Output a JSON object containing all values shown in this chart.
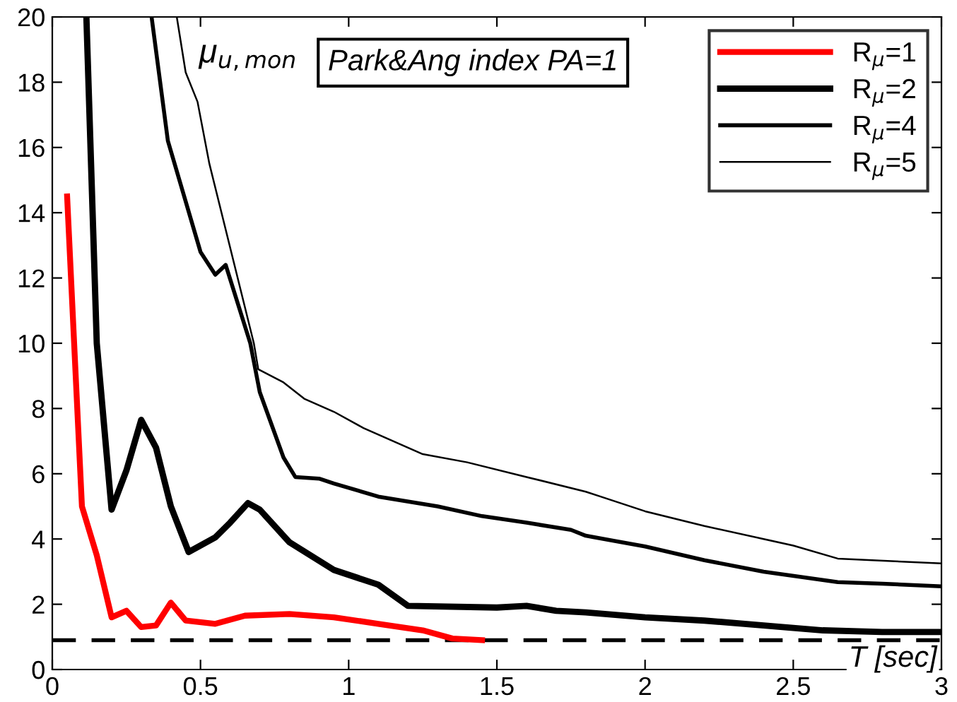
{
  "chart_data": {
    "type": "line",
    "xlabel": "T [sec]",
    "annotations": [
      "μ$_{u,mon}$",
      "Park&Ang index PA=1"
    ],
    "xlim": [
      0,
      3
    ],
    "ylim": [
      0,
      20
    ],
    "xticks": [
      0,
      0.5,
      1,
      1.5,
      2,
      2.5,
      3
    ],
    "yticks": [
      0,
      2,
      4,
      6,
      8,
      10,
      12,
      14,
      16,
      18,
      20
    ],
    "grid": false,
    "legend": "top right",
    "marker": "none",
    "line_style": "solid",
    "ref_lines": [
      {
        "axis": "y",
        "value": 0.9,
        "color": "#000000",
        "line_style": "dashed"
      }
    ],
    "series": [
      {
        "name": "R$_{μ}$=1",
        "color": "#ff0000",
        "x": [
          0.05,
          0.1,
          0.15,
          0.2,
          0.25,
          0.3,
          0.35,
          0.4,
          0.45,
          0.55,
          0.65,
          0.8,
          0.95,
          1.1,
          1.25,
          1.35,
          1.45
        ],
        "values": [
          14.5,
          5.0,
          3.5,
          1.6,
          1.8,
          1.3,
          1.35,
          2.05,
          1.5,
          1.4,
          1.65,
          1.7,
          1.6,
          1.4,
          1.2,
          0.95,
          0.9
        ]
      },
      {
        "name": "R$_{μ}$=2",
        "color": "#000000",
        "x": [
          0.115,
          0.15,
          0.2,
          0.25,
          0.3,
          0.35,
          0.4,
          0.46,
          0.55,
          0.6,
          0.66,
          0.7,
          0.8,
          0.95,
          1.1,
          1.2,
          1.5,
          1.6,
          1.7,
          1.8,
          2.0,
          2.2,
          2.4,
          2.6,
          2.8,
          3.0
        ],
        "values": [
          20,
          10,
          4.9,
          6.1,
          7.65,
          6.8,
          5.0,
          3.6,
          4.05,
          4.5,
          5.1,
          4.9,
          3.9,
          3.05,
          2.6,
          1.95,
          1.9,
          1.95,
          1.8,
          1.75,
          1.6,
          1.5,
          1.35,
          1.2,
          1.15,
          1.15
        ]
      },
      {
        "name": "R$_{μ}$=4",
        "color": "#000000",
        "x": [
          0.335,
          0.39,
          0.5,
          0.55,
          0.585,
          0.668,
          0.7,
          0.78,
          0.82,
          0.9,
          0.95,
          1.1,
          1.3,
          1.45,
          1.6,
          1.75,
          1.8,
          2.0,
          2.2,
          2.4,
          2.65,
          2.8,
          3.0
        ],
        "values": [
          20,
          16.2,
          12.8,
          12.1,
          12.4,
          10,
          8.5,
          6.5,
          5.9,
          5.85,
          5.7,
          5.3,
          5.0,
          4.7,
          4.5,
          4.28,
          4.1,
          3.77,
          3.35,
          3.0,
          2.68,
          2.63,
          2.55
        ]
      },
      {
        "name": "R$_{μ}$=5",
        "color": "#000000",
        "x": [
          0.42,
          0.45,
          0.49,
          0.53,
          0.68,
          0.695,
          0.78,
          0.85,
          0.95,
          1.05,
          1.15,
          1.25,
          1.4,
          1.6,
          1.8,
          1.85,
          2.0,
          2.2,
          2.4,
          2.5,
          2.65,
          3.0
        ],
        "values": [
          20,
          18.3,
          17.4,
          15.5,
          10,
          9.2,
          8.8,
          8.3,
          7.9,
          7.4,
          7.0,
          6.6,
          6.35,
          5.9,
          5.45,
          5.3,
          4.85,
          4.4,
          4.0,
          3.8,
          3.4,
          3.25
        ]
      }
    ]
  }
}
